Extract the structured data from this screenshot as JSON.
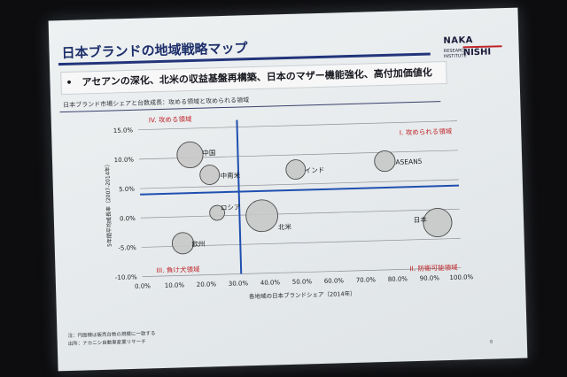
{
  "slide": {
    "title": "日本ブランドの地域戦略マップ",
    "bullet": "•　アセアンの深化、北米の収益基盤再構築、日本のマザー機能強化、高付加価値化",
    "subtitle": "日本ブランド市場シェアと台数成長：攻める領域と攻められる領域",
    "note1": "注：円面積は販売台数の規模に一致する",
    "note2": "出所：ナカニシ自動車産業リサーチ",
    "page_number": "8",
    "logo": {
      "top": "NAKA",
      "sub": "RESEARCH INSTITUTE",
      "bottom": "NISHI"
    }
  },
  "colors": {
    "title": "#1d2f6b",
    "divider": "#22347a",
    "quadrant_line": "#1f4fb0",
    "quadrant_label": "#c0252a",
    "bubble_fill": "#c8c8c8",
    "bubble_stroke": "#4a4a4a"
  },
  "chart_data": {
    "type": "scatter",
    "xlabel": "各地域の日本ブランドシェア（2014年）",
    "ylabel": "5年間平均成長率（2007-2014年）",
    "xlim": [
      0,
      1.0
    ],
    "ylim": [
      -0.1,
      0.15
    ],
    "x_ticks": [
      "0.0%",
      "10.0%",
      "20.0%",
      "30.0%",
      "40.0%",
      "50.0%",
      "60.0%",
      "70.0%",
      "80.0%",
      "90.0%",
      "100.0%"
    ],
    "y_ticks": [
      "15.0%",
      "10.0%",
      "5.0%",
      "0.0%",
      "-5.0%",
      "-10.0%"
    ],
    "x_tick_values": [
      0,
      0.1,
      0.2,
      0.3,
      0.4,
      0.5,
      0.6,
      0.7,
      0.8,
      0.9,
      1.0
    ],
    "y_tick_values": [
      0.15,
      0.1,
      0.05,
      0.0,
      -0.05,
      -0.1
    ],
    "grid": "horizontal",
    "dividers": {
      "x": 0.31,
      "y": 0.04
    },
    "quadrants": [
      {
        "label": "IV. 攻める領域",
        "position": "top-left"
      },
      {
        "label": "I. 攻められる領域",
        "position": "top-right"
      },
      {
        "label": "III. 負け犬領域",
        "position": "bottom-left"
      },
      {
        "label": "II. 防衛可能領域",
        "position": "bottom-right"
      }
    ],
    "points": [
      {
        "label": "中国",
        "x": 0.16,
        "y": 0.105,
        "size": 0.35
      },
      {
        "label": "中南米",
        "x": 0.22,
        "y": 0.07,
        "size": 0.15
      },
      {
        "label": "インド",
        "x": 0.49,
        "y": 0.075,
        "size": 0.15
      },
      {
        "label": "ASEAN5",
        "x": 0.77,
        "y": 0.085,
        "size": 0.18
      },
      {
        "label": "ロシア",
        "x": 0.24,
        "y": 0.005,
        "size": 0.06
      },
      {
        "label": "北米",
        "x": 0.38,
        "y": -0.002,
        "size": 0.6
      },
      {
        "label": "日本",
        "x": 0.93,
        "y": -0.022,
        "size": 0.45
      },
      {
        "label": "欧州",
        "x": 0.13,
        "y": -0.045,
        "size": 0.2
      }
    ]
  }
}
